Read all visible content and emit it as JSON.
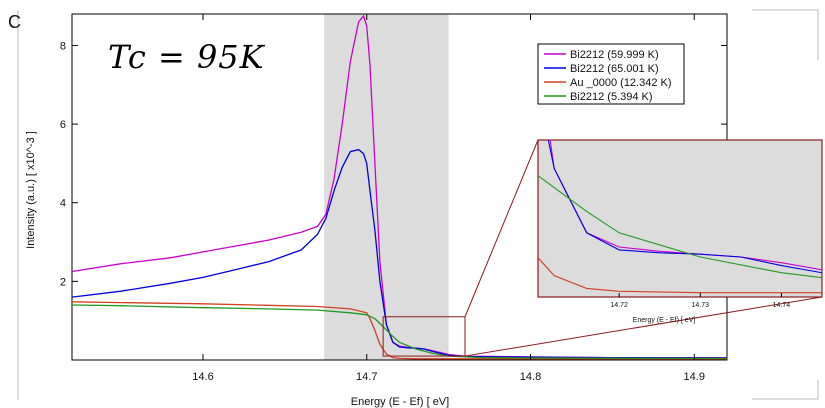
{
  "panel_label": "C",
  "annotation": "Tc = 95K",
  "chart_data": {
    "type": "line",
    "xlabel": "Energy (E - Ef) [ eV]",
    "ylabel": "Intensity (a.u.) [ x10^-3 ]",
    "xlim": [
      14.52,
      14.92
    ],
    "ylim": [
      0,
      8.8
    ],
    "xticks": [
      14.6,
      14.7,
      14.8,
      14.9
    ],
    "yticks": [
      2,
      4,
      6,
      8
    ],
    "grid": false,
    "legend_position": "top-right",
    "shaded_region_x": [
      14.674,
      14.75
    ],
    "series": [
      {
        "name": "Bi2212 (59.999 K)",
        "color": "#cc00cc",
        "x": [
          14.52,
          14.55,
          14.58,
          14.6,
          14.62,
          14.64,
          14.66,
          14.67,
          14.675,
          14.68,
          14.685,
          14.69,
          14.695,
          14.698,
          14.7,
          14.702,
          14.705,
          14.708,
          14.712,
          14.716,
          14.72,
          14.725,
          14.73,
          14.735,
          14.74,
          14.75,
          14.76,
          14.8,
          14.85,
          14.92
        ],
        "y": [
          2.25,
          2.45,
          2.6,
          2.75,
          2.9,
          3.05,
          3.25,
          3.4,
          3.7,
          4.6,
          6.0,
          7.6,
          8.6,
          8.75,
          8.5,
          7.5,
          5.0,
          2.5,
          0.9,
          0.45,
          0.35,
          0.32,
          0.3,
          0.28,
          0.24,
          0.14,
          0.1,
          0.08,
          0.06,
          0.06
        ]
      },
      {
        "name": "Bi2212 (65.001 K)",
        "color": "#0000dd",
        "x": [
          14.52,
          14.55,
          14.58,
          14.6,
          14.62,
          14.64,
          14.66,
          14.67,
          14.675,
          14.68,
          14.685,
          14.69,
          14.695,
          14.698,
          14.7,
          14.702,
          14.705,
          14.708,
          14.712,
          14.716,
          14.72,
          14.725,
          14.73,
          14.735,
          14.74,
          14.75,
          14.76,
          14.8,
          14.85,
          14.92
        ],
        "y": [
          1.6,
          1.75,
          1.95,
          2.1,
          2.3,
          2.5,
          2.8,
          3.2,
          3.6,
          4.3,
          4.9,
          5.3,
          5.35,
          5.25,
          5.0,
          4.3,
          3.3,
          2.0,
          0.9,
          0.45,
          0.33,
          0.31,
          0.3,
          0.28,
          0.22,
          0.12,
          0.09,
          0.07,
          0.06,
          0.05
        ]
      },
      {
        "name": "Au _0000 (12.342 K)",
        "color": "#d04020",
        "x": [
          14.52,
          14.55,
          14.6,
          14.64,
          14.67,
          14.69,
          14.7,
          14.702,
          14.705,
          14.708,
          14.712,
          14.716,
          14.72,
          14.73,
          14.75,
          14.8,
          14.92
        ],
        "y": [
          1.48,
          1.46,
          1.43,
          1.39,
          1.36,
          1.3,
          1.2,
          1.05,
          0.75,
          0.4,
          0.15,
          0.06,
          0.04,
          0.03,
          0.03,
          0.03,
          0.03
        ]
      },
      {
        "name": "Bi2212 (5.394 K)",
        "color": "#229922",
        "x": [
          14.52,
          14.55,
          14.6,
          14.64,
          14.67,
          14.69,
          14.7,
          14.705,
          14.71,
          14.716,
          14.72,
          14.73,
          14.74,
          14.75,
          14.77,
          14.8,
          14.92
        ],
        "y": [
          1.4,
          1.38,
          1.33,
          1.3,
          1.27,
          1.2,
          1.15,
          1.05,
          0.85,
          0.6,
          0.45,
          0.28,
          0.17,
          0.1,
          0.06,
          0.05,
          0.04
        ]
      }
    ],
    "inset": {
      "zoom_box_x": [
        14.71,
        14.76
      ],
      "zoom_box_y": [
        0.1,
        1.1
      ],
      "xlim": [
        14.71,
        14.745
      ],
      "ylim": [
        0.0,
        1.1
      ],
      "xticks": [
        14.72,
        14.73,
        14.74
      ],
      "xlabel": "Energy (E - Ef) [ eV]"
    }
  }
}
